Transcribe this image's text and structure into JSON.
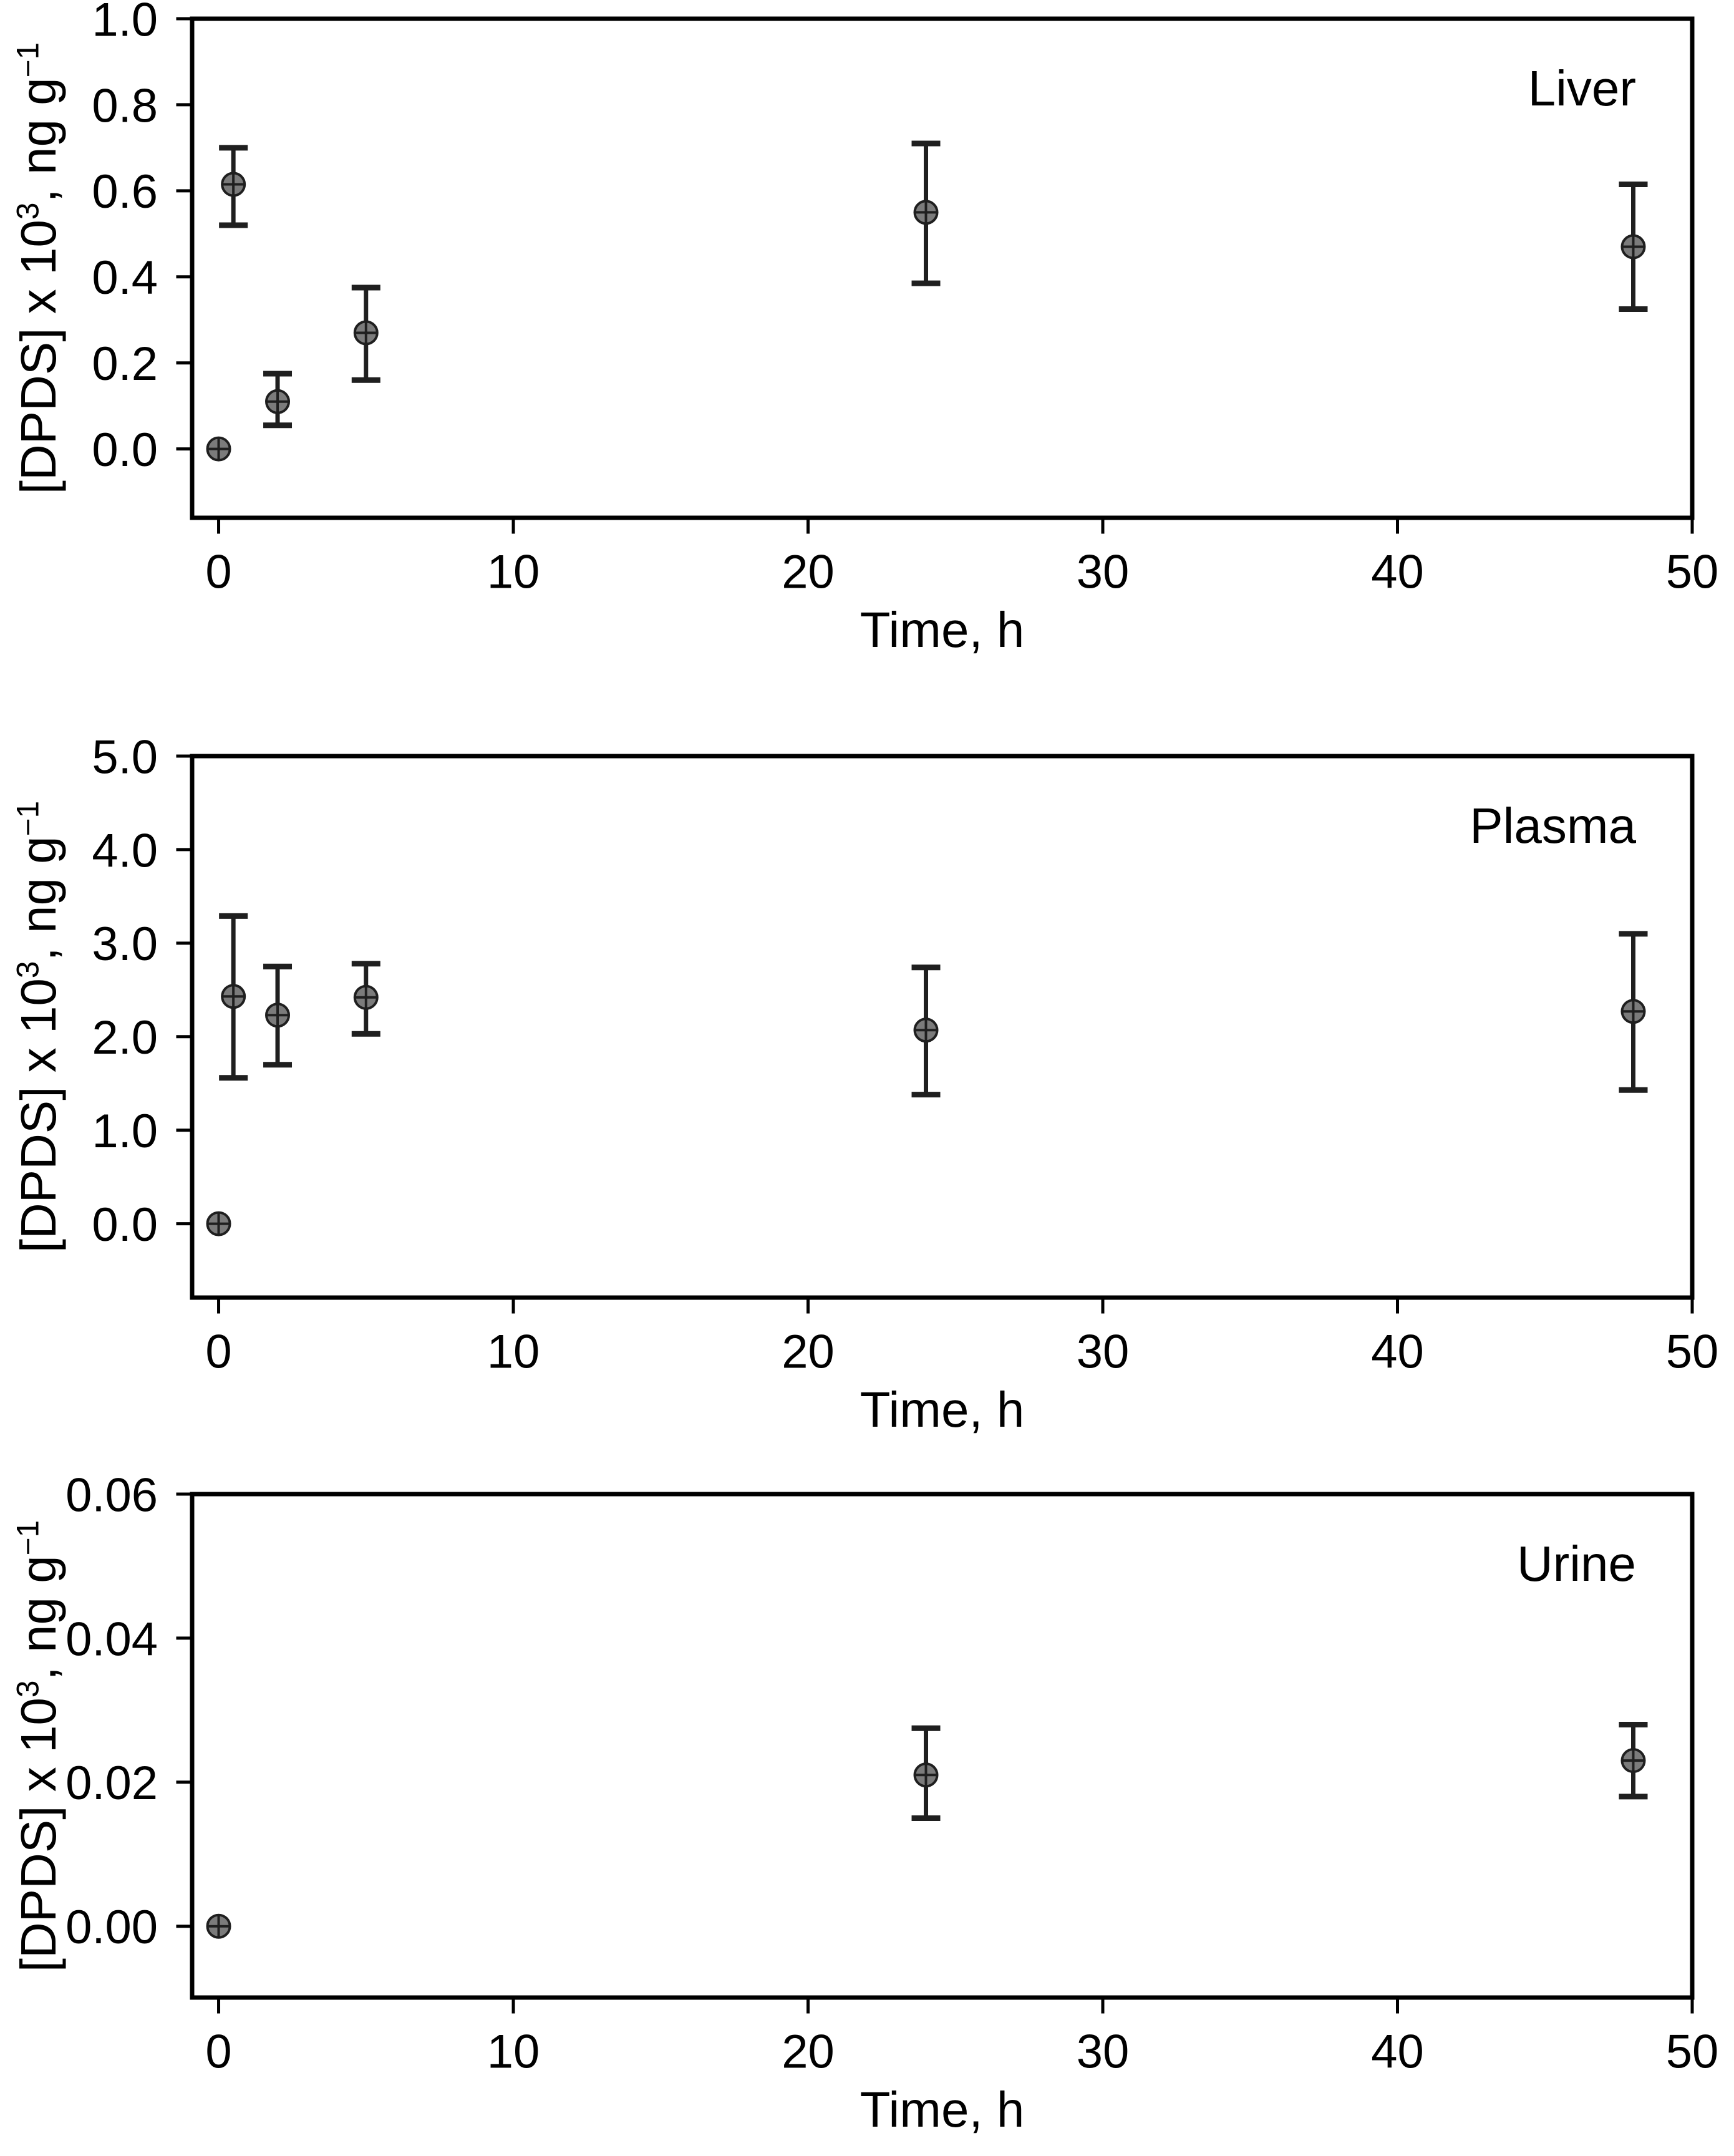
{
  "page": {
    "background": "#ffffff"
  },
  "chart_data": [
    {
      "type": "scatter",
      "panel_label": "Liver",
      "xlabel": "Time, h",
      "ylabel": {
        "prefix": "[DPDS] x 10",
        "sup1": "3",
        "mid": ", ng g",
        "sup2": "−1"
      },
      "x": [
        0,
        0.5,
        2,
        5,
        24,
        48
      ],
      "y": [
        0.0,
        0.615,
        0.11,
        0.27,
        0.55,
        0.47
      ],
      "err_low": [
        null,
        0.52,
        0.055,
        0.16,
        0.385,
        0.325
      ],
      "err_high": [
        null,
        0.7,
        0.175,
        0.375,
        0.71,
        0.615
      ],
      "xlim": [
        -0.9,
        50
      ],
      "ylim": [
        -0.16,
        1.0
      ],
      "x_ticks": [
        0,
        10,
        20,
        30,
        40,
        50
      ],
      "x_tick_labels": [
        "0",
        "10",
        "20",
        "30",
        "40",
        "50"
      ],
      "y_ticks": [
        0.0,
        0.2,
        0.4,
        0.6,
        0.8,
        1.0
      ],
      "y_tick_labels": [
        "0.0",
        "0.2",
        "0.4",
        "0.6",
        "0.8",
        "1.0"
      ],
      "grid": false,
      "legend": "none",
      "marker_color": "#7b7b7b",
      "line_color": "#1f1f1f"
    },
    {
      "type": "scatter",
      "panel_label": "Plasma",
      "xlabel": "Time, h",
      "ylabel": {
        "prefix": "[DPDS] x 10",
        "sup1": "3",
        "mid": ", ng g",
        "sup2": "−1"
      },
      "x": [
        0,
        0.5,
        2,
        5,
        24,
        48
      ],
      "y": [
        0.0,
        2.43,
        2.23,
        2.42,
        2.07,
        2.27
      ],
      "err_low": [
        null,
        1.56,
        1.7,
        2.03,
        1.38,
        1.43
      ],
      "err_high": [
        null,
        3.29,
        2.75,
        2.78,
        2.74,
        3.1
      ],
      "xlim": [
        -0.9,
        50
      ],
      "ylim": [
        -0.79,
        5.0
      ],
      "x_ticks": [
        0,
        10,
        20,
        30,
        40,
        50
      ],
      "x_tick_labels": [
        "0",
        "10",
        "20",
        "30",
        "40",
        "50"
      ],
      "y_ticks": [
        0.0,
        1.0,
        2.0,
        3.0,
        4.0,
        5.0
      ],
      "y_tick_labels": [
        "0.0",
        "1.0",
        "2.0",
        "3.0",
        "4.0",
        "5.0"
      ],
      "grid": false,
      "legend": "none",
      "marker_color": "#7b7b7b",
      "line_color": "#1f1f1f"
    },
    {
      "type": "scatter",
      "panel_label": "Urine",
      "xlabel": "Time, h",
      "ylabel": {
        "prefix": "[DPDS] x 10",
        "sup1": "3",
        "mid": ", ng g",
        "sup2": "−1"
      },
      "x": [
        0,
        24,
        48
      ],
      "y": [
        0.0,
        0.021,
        0.023
      ],
      "err_low": [
        null,
        0.015,
        0.018
      ],
      "err_high": [
        null,
        0.0275,
        0.028
      ],
      "xlim": [
        -0.9,
        50
      ],
      "ylim": [
        -0.0099,
        0.06
      ],
      "x_ticks": [
        0,
        10,
        20,
        30,
        40,
        50
      ],
      "x_tick_labels": [
        "0",
        "10",
        "20",
        "30",
        "40",
        "50"
      ],
      "y_ticks": [
        0.0,
        0.02,
        0.04,
        0.06
      ],
      "y_tick_labels": [
        "0.00",
        "0.02",
        "0.04",
        "0.06"
      ],
      "grid": false,
      "legend": "none",
      "marker_color": "#7b7b7b",
      "line_color": "#1f1f1f"
    }
  ]
}
